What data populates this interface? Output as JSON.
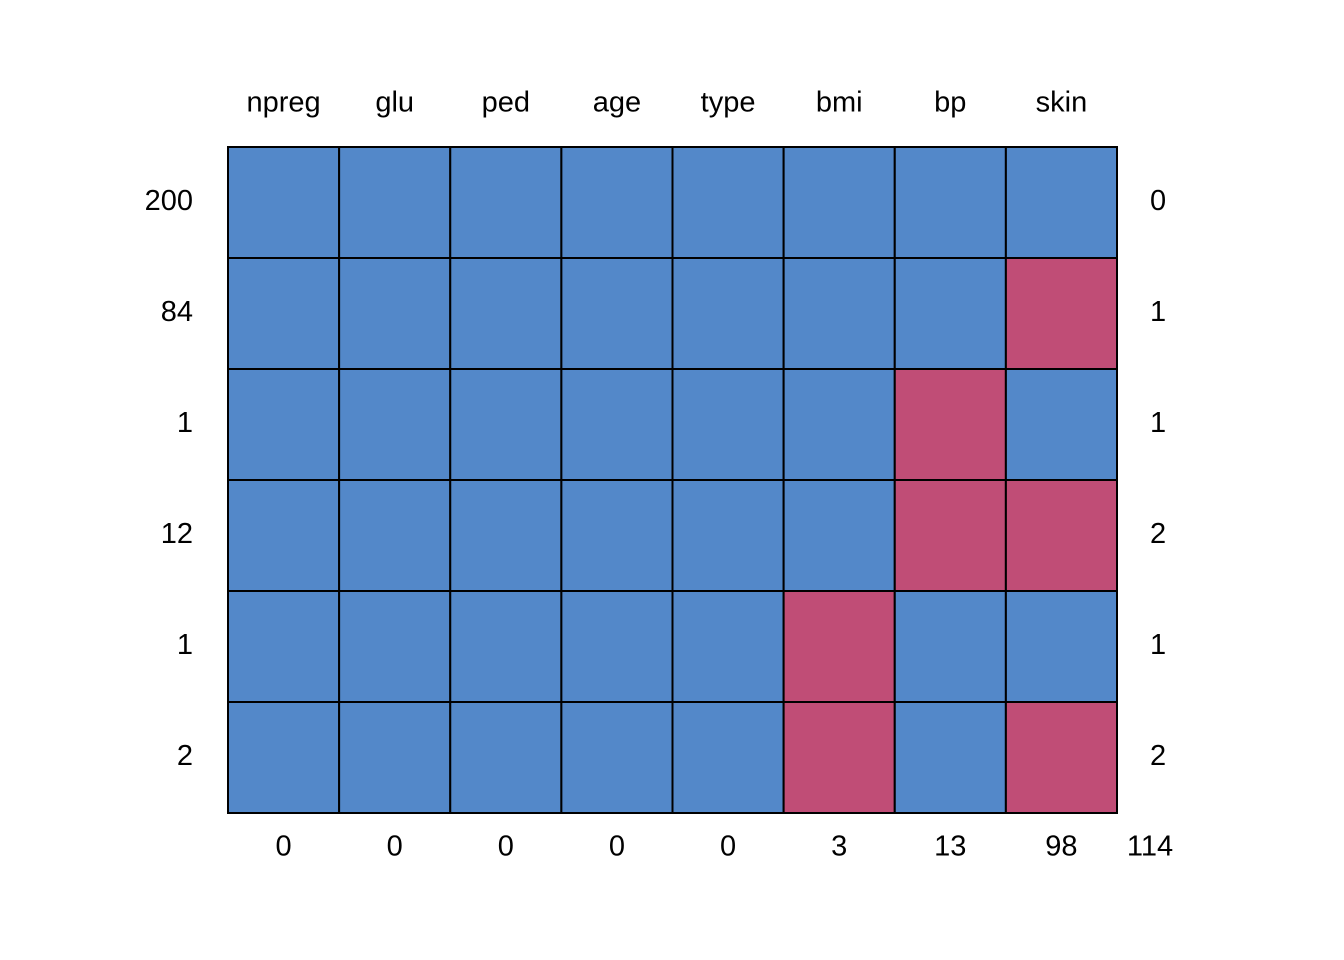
{
  "chart_data": {
    "type": "heatmap",
    "variables": [
      "npreg",
      "glu",
      "ped",
      "age",
      "type",
      "bmi",
      "bp",
      "skin"
    ],
    "patterns": [
      {
        "count": "200",
        "missing": [
          0,
          0,
          0,
          0,
          0,
          0,
          0,
          0
        ],
        "n_missing": "0"
      },
      {
        "count": "84",
        "missing": [
          0,
          0,
          0,
          0,
          0,
          0,
          0,
          1
        ],
        "n_missing": "1"
      },
      {
        "count": "1",
        "missing": [
          0,
          0,
          0,
          0,
          0,
          0,
          1,
          0
        ],
        "n_missing": "1"
      },
      {
        "count": "12",
        "missing": [
          0,
          0,
          0,
          0,
          0,
          0,
          1,
          1
        ],
        "n_missing": "2"
      },
      {
        "count": "1",
        "missing": [
          0,
          0,
          0,
          0,
          0,
          1,
          0,
          0
        ],
        "n_missing": "1"
      },
      {
        "count": "2",
        "missing": [
          0,
          0,
          0,
          0,
          0,
          1,
          0,
          1
        ],
        "n_missing": "2"
      }
    ],
    "column_missing_totals": [
      "0",
      "0",
      "0",
      "0",
      "0",
      "3",
      "13",
      "98"
    ],
    "total_missing": "114",
    "colors": {
      "observed": "#5388C9",
      "missing": "#C04D76",
      "border": "#000000"
    }
  }
}
